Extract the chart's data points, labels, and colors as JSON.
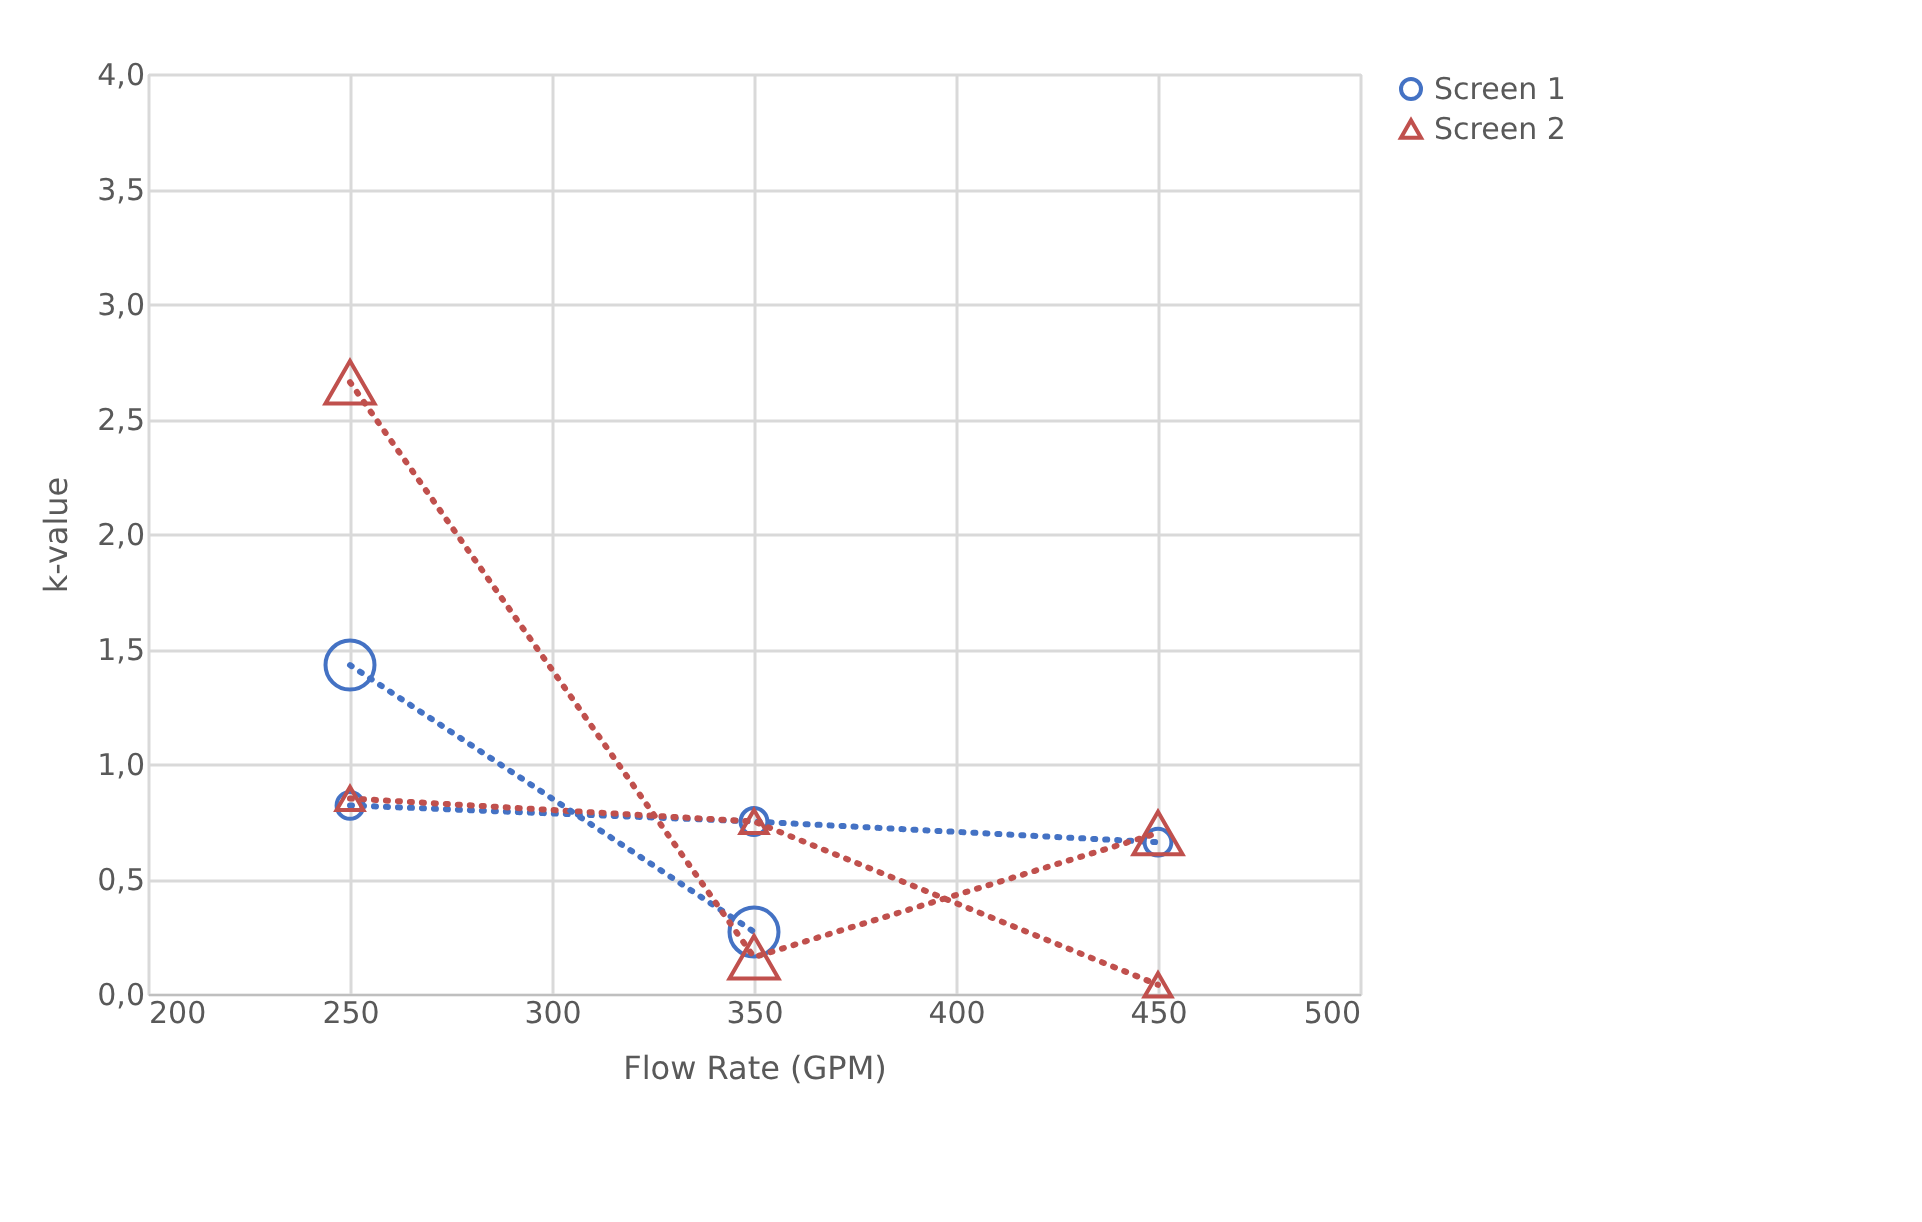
{
  "chart_data": {
    "type": "line",
    "xlabel": "Flow Rate (GPM)",
    "ylabel": "k-value",
    "x": [
      250,
      350,
      450
    ],
    "series": [
      {
        "name": "Screen 1",
        "color": "#4472c4",
        "marker": "circle",
        "values": [
          0.82,
          0.75,
          0.66
        ]
      },
      {
        "name": "Screen 2",
        "color": "#c0504d",
        "marker": "triangle",
        "values": [
          0.85,
          0.75,
          0.04
        ]
      },
      {
        "color": "#4472c4",
        "marker": "circle",
        "values": [
          1.43,
          0.27,
          null
        ]
      },
      {
        "color": "#c0504d",
        "marker": "triangle",
        "values": [
          2.66,
          0.16,
          0.7
        ]
      }
    ],
    "xlim": [
      200,
      500
    ],
    "xticks": [
      200,
      250,
      300,
      350,
      400,
      450,
      500
    ],
    "ylim": [
      0,
      4
    ],
    "yticks": [
      {
        "value": 0,
        "label": "0,0"
      },
      {
        "value": 0.5,
        "label": "0,5"
      },
      {
        "value": 1,
        "label": "1,0"
      },
      {
        "value": 1.5,
        "label": "1,5"
      },
      {
        "value": 2,
        "label": "2,0"
      },
      {
        "value": 2.5,
        "label": "2,5"
      },
      {
        "value": 3,
        "label": "3,0"
      },
      {
        "value": 3.5,
        "label": "3,5"
      },
      {
        "value": 4,
        "label": "4,0"
      }
    ],
    "grid": true,
    "legend": "right",
    "line_style": "dotted"
  }
}
